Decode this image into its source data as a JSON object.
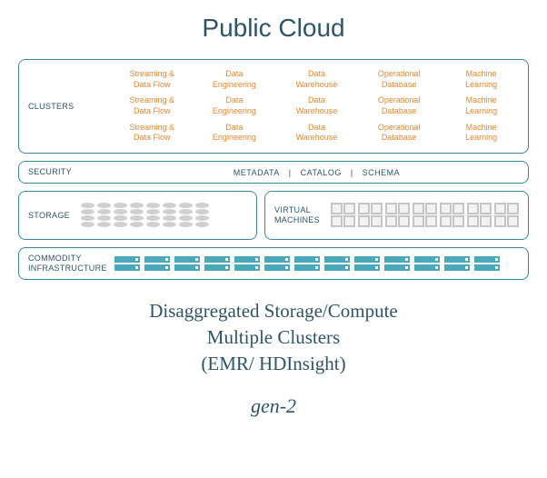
{
  "title": "Public Cloud",
  "clusters": {
    "label": "CLUSTERS",
    "rows": [
      [
        "Streaming &\nData Flow",
        "Data\nEngineering",
        "Data\nWarehouse",
        "Operational\nDatabase",
        "Machine\nLearning"
      ],
      [
        "Streaming &\nData Flow",
        "Data\nEngineering",
        "Data\nWarehouse",
        "Operational\nDatabase",
        "Machine\nLearning"
      ],
      [
        "Streaming &\nData Flow",
        "Data\nEngineering",
        "Data\nWarehouse",
        "Operational\nDatabase",
        "Machine\nLearning"
      ]
    ],
    "text_color": "#e8872b"
  },
  "security": {
    "label": "SECURITY",
    "items": [
      "METADATA",
      "CATALOG",
      "SCHEMA"
    ]
  },
  "storage": {
    "label": "STORAGE",
    "stack_count": 8,
    "disks_per_stack": 4,
    "disk_color": "#d0d0d0"
  },
  "vm": {
    "label": "VIRTUAL MACHINES",
    "unit_count": 7,
    "box_color": "#c5c5c5"
  },
  "commodity": {
    "label": "COMMODITY INFRASTRUCTURE",
    "unit_count": 13,
    "bars_per_unit": 2,
    "bar_color": "#4aa9b8"
  },
  "footer": {
    "line1": "Disaggregated Storage/Compute",
    "line2": "Multiple Clusters",
    "line3": "(EMR/ HDInsight)"
  },
  "gen": "gen-2",
  "border_color": "#3a8a99",
  "title_color": "#2d5568"
}
